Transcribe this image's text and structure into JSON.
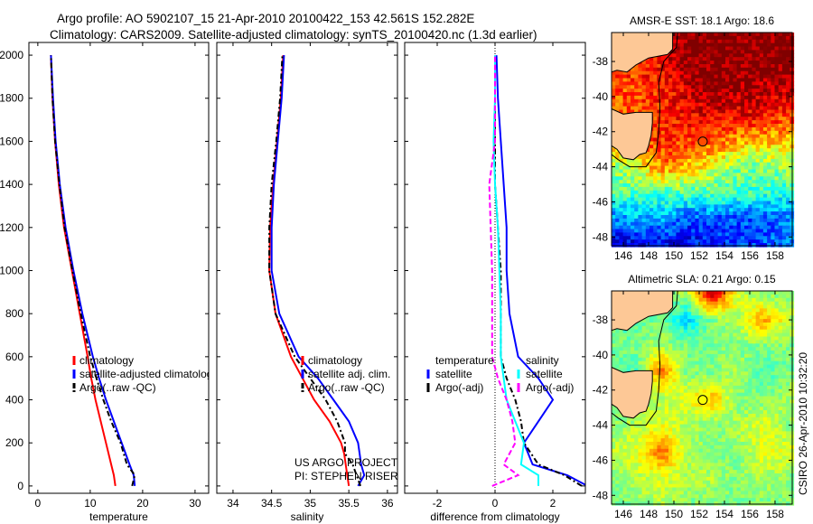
{
  "header": {
    "line1": "Argo profile: AO 5902107_15 21-Apr-2010 20100422_153 42.561S 152.282E",
    "line2": "Climatology: CARS2009. Satellite-adjusted climatology: synTS_20100420.nc (1.3d earlier)"
  },
  "footer_stamp": "CSIRO 26-Apr-2010 10:32:20",
  "colors": {
    "climatology": "#ff0000",
    "satellite": "#0000ff",
    "argo": "#000000",
    "sal_satellite": "#00ffff",
    "sal_argo": "#ff00ff",
    "land": "#fdc896"
  },
  "chart_data": [
    {
      "type": "line",
      "name": "temperature",
      "xlabel": "temperature",
      "ylabel": "",
      "xlim": [
        -1.7,
        32.6
      ],
      "ylim": [
        2059,
        -34
      ],
      "xticks": [
        0,
        10,
        20,
        30
      ],
      "yticks": [
        0,
        200,
        400,
        600,
        800,
        1000,
        1200,
        1400,
        1600,
        1800,
        2000
      ],
      "legend": [
        "climatology",
        "satellite-adjusted climatology",
        "Argo(..raw -QC)"
      ],
      "legend_placement": "lower-center",
      "depth": [
        0,
        50,
        100,
        200,
        300,
        400,
        500,
        600,
        800,
        1000,
        1200,
        1400,
        1600,
        1800,
        2000
      ],
      "series": [
        {
          "name": "climatology",
          "color": "#ff0000",
          "dash": "",
          "values": [
            14.8,
            14.5,
            14.0,
            13.0,
            12.0,
            11.0,
            10.2,
            9.5,
            8.0,
            6.5,
            5.0,
            4.0,
            3.3,
            2.8,
            2.5
          ]
        },
        {
          "name": "satellite-adjusted climatology",
          "color": "#0000ff",
          "dash": "",
          "values": [
            18.5,
            18.3,
            17.5,
            16.0,
            14.5,
            13.0,
            11.7,
            10.5,
            8.5,
            6.8,
            5.3,
            4.2,
            3.4,
            2.9,
            2.5
          ]
        },
        {
          "name": "Argo(..raw -QC)",
          "color": "#000000",
          "dash": "6,3,2,3",
          "values": [
            18.0,
            18.5,
            17.0,
            15.8,
            14.0,
            12.5,
            11.2,
            10.0,
            8.2,
            6.6,
            5.1,
            4.1,
            3.3,
            2.8,
            2.5
          ]
        }
      ]
    },
    {
      "type": "line",
      "name": "salinity",
      "xlabel": "salinity",
      "xlim": [
        33.79,
        36.13
      ],
      "ylim": [
        2059,
        -34
      ],
      "xticks": [
        34,
        34.5,
        35,
        35.5,
        36
      ],
      "yticks": [
        0,
        200,
        400,
        600,
        800,
        1000,
        1200,
        1400,
        1600,
        1800,
        2000
      ],
      "legend": [
        "climatology",
        "satellite adj. clim.",
        "Argo(..raw -QC)"
      ],
      "legend_placement": "lower-right",
      "annotations": [
        "US ARGO PROJECT",
        "PI: STEPHEN RISER"
      ],
      "depth": [
        0,
        50,
        100,
        150,
        200,
        300,
        400,
        500,
        600,
        800,
        1000,
        1200,
        1400,
        1600,
        1800,
        2000
      ],
      "series": [
        {
          "name": "climatology",
          "color": "#ff0000",
          "dash": "",
          "values": [
            35.5,
            35.48,
            35.46,
            35.44,
            35.4,
            35.25,
            35.05,
            34.9,
            34.75,
            34.55,
            34.47,
            34.48,
            34.52,
            34.57,
            34.62,
            34.65
          ]
        },
        {
          "name": "satellite adj. clim.",
          "color": "#0000ff",
          "dash": "",
          "values": [
            35.62,
            35.7,
            35.66,
            35.64,
            35.62,
            35.5,
            35.3,
            35.1,
            34.85,
            34.6,
            34.5,
            34.5,
            34.53,
            34.58,
            34.63,
            34.66
          ]
        },
        {
          "name": "Argo(..raw -QC)",
          "color": "#000000",
          "dash": "6,3,2,3",
          "values": [
            35.65,
            35.6,
            35.55,
            35.45,
            35.45,
            35.35,
            35.2,
            35.0,
            34.8,
            34.55,
            34.47,
            34.47,
            34.5,
            34.56,
            34.61,
            34.64
          ]
        }
      ]
    },
    {
      "type": "line",
      "name": "difference",
      "xlabel": "difference from climatology",
      "xlim": [
        -3.125,
        3.125
      ],
      "ylim": [
        2059,
        -34
      ],
      "xticks": [
        -2,
        0,
        2
      ],
      "yticks": [
        0,
        200,
        400,
        600,
        800,
        1000,
        1200,
        1400,
        1600,
        1800,
        2000
      ],
      "legend_headers": [
        "temperature",
        "salinity"
      ],
      "legend": [
        "satellite",
        "Argo(-adj)",
        "satellite",
        "Argo(-adj)"
      ],
      "legend_placement": "lower-center",
      "depth": [
        0,
        50,
        100,
        200,
        300,
        400,
        500,
        600,
        800,
        1000,
        1200,
        1400,
        1600,
        1800,
        2000
      ],
      "series": [
        {
          "name": "temperature satellite",
          "color": "#0000ff",
          "dash": "",
          "values": [
            3.2,
            2.5,
            1.3,
            1.0,
            1.5,
            2.0,
            1.5,
            0.8,
            0.5,
            0.4,
            0.4,
            0.3,
            0.2,
            0.1,
            0.05
          ]
        },
        {
          "name": "temperature Argo(-adj)",
          "color": "#000000",
          "dash": "6,3,2,3",
          "values": [
            3.0,
            2.4,
            1.5,
            1.0,
            0.9,
            0.7,
            0.4,
            0.2,
            0.2,
            0.2,
            0.1,
            0.0,
            0.0,
            0.0,
            0.0
          ]
        },
        {
          "name": "salinity satellite",
          "color": "#00ffff",
          "dash": "",
          "values": [
            1.5,
            1.5,
            0.9,
            1.0,
            0.7,
            0.4,
            0.3,
            0.2,
            0.2,
            0.15,
            0.1,
            0.0,
            -0.05,
            0.0,
            0.0
          ]
        },
        {
          "name": "salinity Argo(-adj)",
          "color": "#ff00ff",
          "dash": "6,3",
          "values": [
            -0.1,
            0.8,
            0.3,
            0.7,
            0.6,
            0.4,
            0.1,
            -0.1,
            -0.1,
            -0.1,
            -0.15,
            -0.2,
            0.0,
            0.0,
            0.0
          ]
        }
      ]
    },
    {
      "type": "heatmap",
      "name": "sst-map",
      "title": "AMSR-E SST: 18.1 Argo: 18.6",
      "xlim": [
        145.07,
        159.36
      ],
      "ylim": [
        -48.5,
        -36.35
      ],
      "xticks": [
        146,
        148,
        150,
        152,
        154,
        156,
        158
      ],
      "yticks": [
        -38,
        -40,
        -42,
        -44,
        -46,
        -48
      ],
      "argo_position": [
        152.282,
        -42.561
      ],
      "argo_value_index": 0.8,
      "grid_lats": [
        -36.5,
        -38,
        -39.5,
        -41,
        -42.5,
        -44,
        -45.5,
        -47,
        -48.5
      ],
      "grid_lons": [
        145,
        147,
        149,
        151,
        153,
        155,
        157,
        159.5
      ],
      "grid": [
        [
          0.85,
          0.85,
          0.9,
          1,
          1,
          1,
          1,
          1
        ],
        [
          0.85,
          0.85,
          0.88,
          1,
          1,
          1,
          1,
          1
        ],
        [
          0.8,
          0.8,
          0.85,
          0.92,
          1,
          0.97,
          0.95,
          0.95
        ],
        [
          0.8,
          0.8,
          0.85,
          0.88,
          0.9,
          0.9,
          0.88,
          0.82
        ],
        [
          0.8,
          0.8,
          0.83,
          0.82,
          0.8,
          0.72,
          0.7,
          0.68
        ],
        [
          0.5,
          0.6,
          0.75,
          0.7,
          0.6,
          0.5,
          0.5,
          0.55
        ],
        [
          0.45,
          0.45,
          0.45,
          0.45,
          0.45,
          0.45,
          0.42,
          0.4
        ],
        [
          0.25,
          0.3,
          0.3,
          0.2,
          0.2,
          0.2,
          0.2,
          0.25
        ],
        [
          0.08,
          0.08,
          0.1,
          0.1,
          0.15,
          0.2,
          0.2,
          0.25
        ]
      ]
    },
    {
      "type": "heatmap",
      "name": "sla-map",
      "title": "Altimetric SLA: 0.21 Argo: 0.15",
      "xlim": [
        145.07,
        159.36
      ],
      "ylim": [
        -48.5,
        -36.35
      ],
      "xticks": [
        146,
        148,
        150,
        152,
        154,
        156,
        158
      ],
      "yticks": [
        -38,
        -40,
        -42,
        -44,
        -46,
        -48
      ],
      "argo_position": [
        152.282,
        -42.561
      ],
      "argo_value_index": 0.62,
      "grid_lats": [
        -36.5,
        -38,
        -39.5,
        -41,
        -42.5,
        -44,
        -45.5,
        -47,
        -48.5
      ],
      "grid_lons": [
        145,
        147,
        149,
        151,
        153,
        155,
        157,
        159.5
      ],
      "grid": [
        [
          0.45,
          0.45,
          0.5,
          0.55,
          0.95,
          0.6,
          0.5,
          0.5
        ],
        [
          0.45,
          0.45,
          0.5,
          0.33,
          0.5,
          0.55,
          0.72,
          0.55
        ],
        [
          0.5,
          0.5,
          0.55,
          0.5,
          0.5,
          0.5,
          0.5,
          0.5
        ],
        [
          0.45,
          0.45,
          0.78,
          0.5,
          0.5,
          0.55,
          0.45,
          0.5
        ],
        [
          0.5,
          0.5,
          0.55,
          0.6,
          0.7,
          0.5,
          0.5,
          0.55
        ],
        [
          0.5,
          0.55,
          0.6,
          0.55,
          0.5,
          0.55,
          0.6,
          0.5
        ],
        [
          0.55,
          0.6,
          0.78,
          0.55,
          0.5,
          0.5,
          0.6,
          0.6
        ],
        [
          0.5,
          0.55,
          0.6,
          0.55,
          0.55,
          0.5,
          0.55,
          0.5
        ],
        [
          0.5,
          0.5,
          0.55,
          0.5,
          0.5,
          0.5,
          0.5,
          0.5
        ]
      ]
    }
  ]
}
